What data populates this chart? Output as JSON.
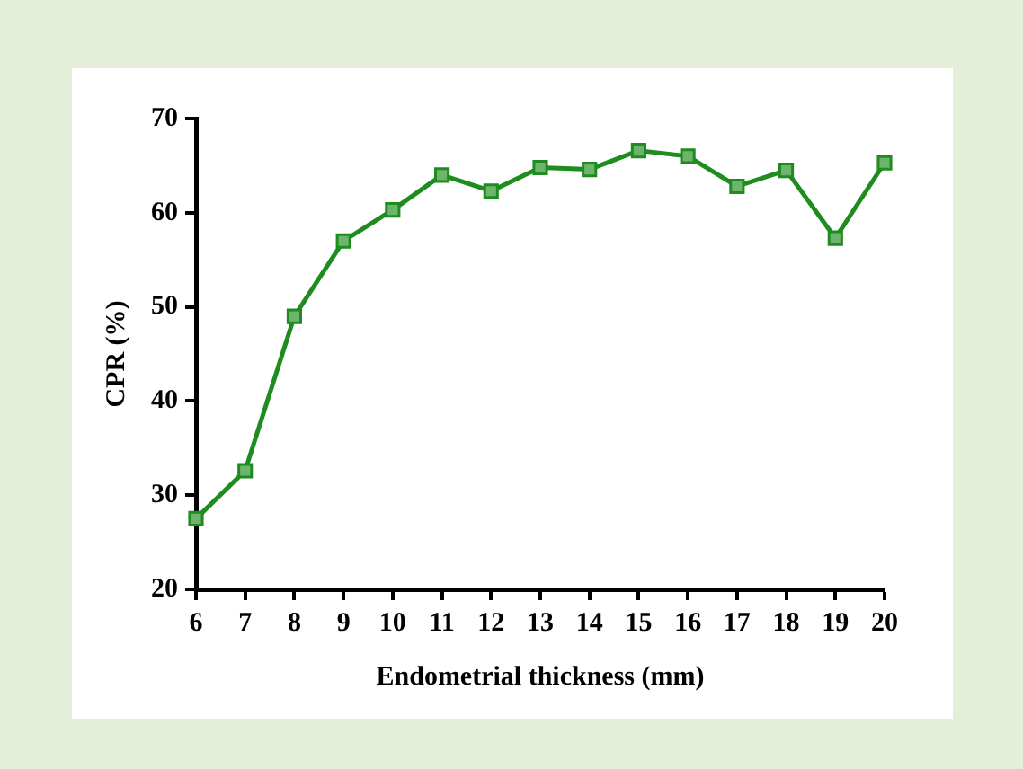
{
  "chart_data": {
    "type": "line",
    "xlabel": "Endometrial thickness (mm)",
    "ylabel": "CPR (%)",
    "x": [
      6,
      7,
      8,
      9,
      10,
      11,
      12,
      13,
      14,
      15,
      16,
      17,
      18,
      19,
      20
    ],
    "series": [
      {
        "color": "#1f8c1f",
        "values": [
          27.5,
          32.6,
          49.0,
          57.0,
          60.3,
          64.0,
          62.3,
          64.8,
          64.6,
          66.6,
          66.0,
          62.8,
          64.5,
          57.3,
          65.3
        ]
      }
    ],
    "xlim": [
      6,
      20
    ],
    "xticks": [
      6,
      7,
      8,
      9,
      10,
      11,
      12,
      13,
      14,
      15,
      16,
      17,
      18,
      19,
      20
    ],
    "ylim": [
      20,
      70
    ],
    "yticks": [
      20,
      30,
      40,
      50,
      60,
      70
    ],
    "grid": false,
    "legend": false,
    "marker": "square",
    "line_style": "solid"
  }
}
